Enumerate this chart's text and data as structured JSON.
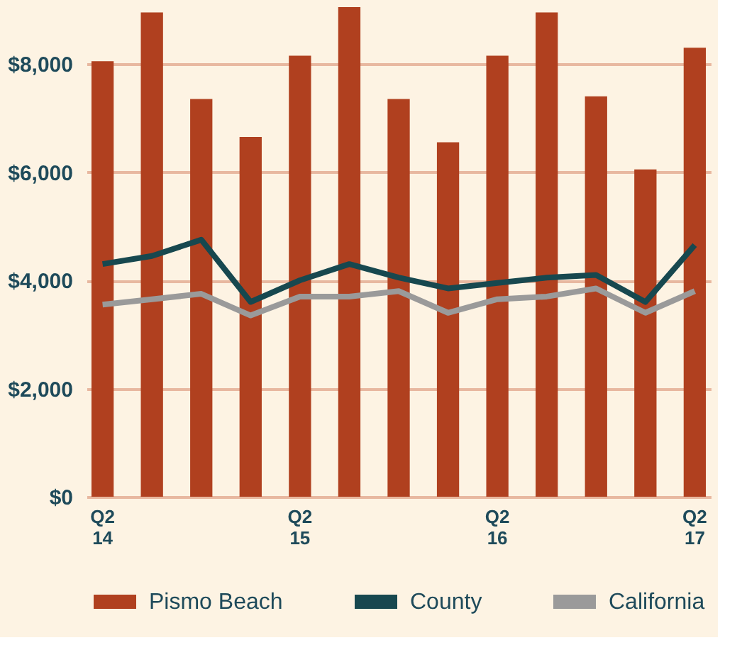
{
  "chart_data": {
    "type": "bar",
    "categories": [
      "Q2\n14",
      null,
      null,
      null,
      "Q2\n15",
      null,
      null,
      null,
      "Q2\n16",
      null,
      null,
      null,
      "Q2\n17"
    ],
    "series": [
      {
        "name": "Pismo Beach",
        "color": "#b0401f",
        "values": [
          8050,
          8950,
          7350,
          6650,
          8150,
          9050,
          7350,
          6550,
          8150,
          8950,
          7400,
          6050,
          8300
        ]
      },
      {
        "name": "County",
        "type": "line",
        "color": "#17484f",
        "values": [
          4300,
          4450,
          4750,
          3600,
          4000,
          4300,
          4050,
          3850,
          3950,
          4050,
          4100,
          3600,
          4650
        ]
      },
      {
        "name": "California",
        "type": "line",
        "color": "#9a9a9a",
        "values": [
          3550,
          3650,
          3750,
          3350,
          3700,
          3700,
          3800,
          3400,
          3650,
          3700,
          3850,
          3400,
          3800
        ]
      }
    ],
    "ylim": [
      0,
      9050
    ],
    "yticks": [
      {
        "value": 0,
        "label": "$0"
      },
      {
        "value": 2000,
        "label": "$2,000"
      },
      {
        "value": 4000,
        "label": "$4,000"
      },
      {
        "value": 6000,
        "label": "$6,000"
      },
      {
        "value": 8000,
        "label": "$8,000"
      }
    ],
    "grid": "y",
    "legend": "bottom",
    "marker": "none",
    "line_style": "solid"
  }
}
